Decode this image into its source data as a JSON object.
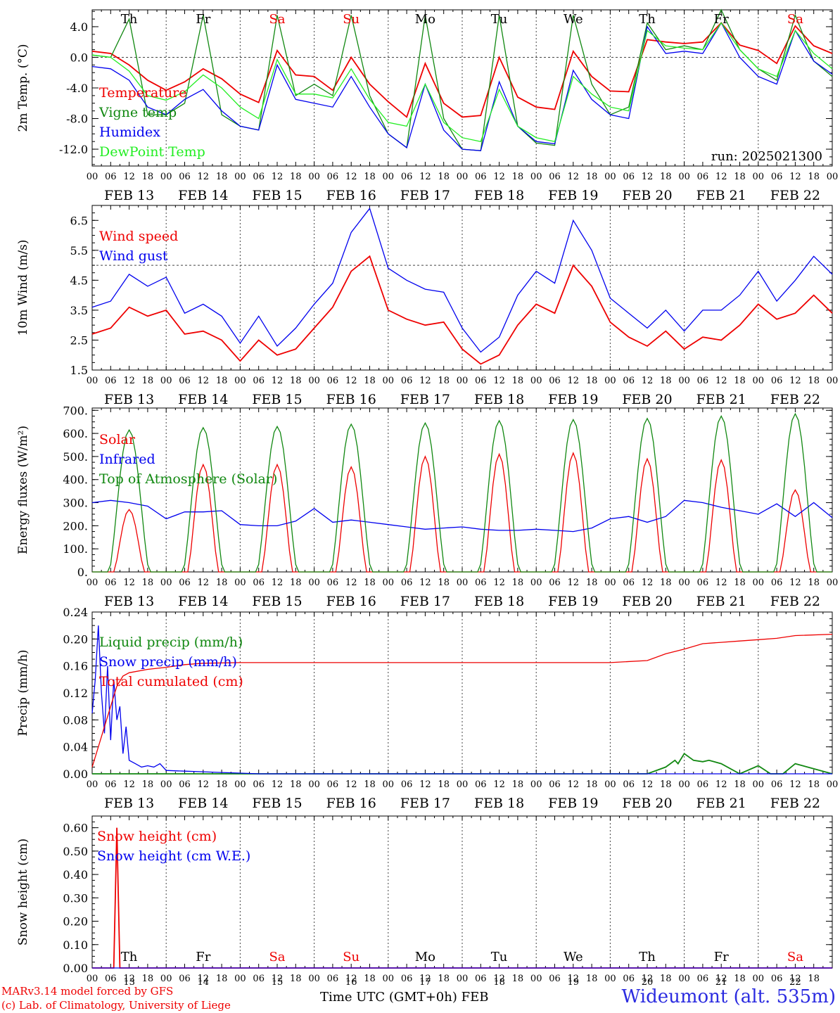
{
  "station": "Wideumont (alt. 535m)",
  "run": "run: 2025021300",
  "footer": {
    "model": "MARv3.14 model forced by GFS",
    "lab": "(c) Lab. of Climatology, University of Liege",
    "axis_title": "Time UTC (GMT+0h) FEB"
  },
  "days": [
    {
      "date": "FEB 13",
      "num": "13",
      "abbr": "Th",
      "weekend": false
    },
    {
      "date": "FEB 14",
      "num": "14",
      "abbr": "Fr",
      "weekend": false
    },
    {
      "date": "FEB 15",
      "num": "15",
      "abbr": "Sa",
      "weekend": true
    },
    {
      "date": "FEB 16",
      "num": "16",
      "abbr": "Su",
      "weekend": true
    },
    {
      "date": "FEB 17",
      "num": "17",
      "abbr": "Mo",
      "weekend": false
    },
    {
      "date": "FEB 18",
      "num": "18",
      "abbr": "Tu",
      "weekend": false
    },
    {
      "date": "FEB 19",
      "num": "19",
      "abbr": "We",
      "weekend": false
    },
    {
      "date": "FEB 20",
      "num": "20",
      "abbr": "Th",
      "weekend": false
    },
    {
      "date": "FEB 21",
      "num": "21",
      "abbr": "Fr",
      "weekend": false
    },
    {
      "date": "FEB 22",
      "num": "22",
      "abbr": "Sa",
      "weekend": true
    }
  ],
  "hour_ticks": [
    "00",
    "06",
    "12",
    "18"
  ],
  "colors": {
    "red": "#ee0000",
    "dark_green": "#118811",
    "blue": "#0000ee",
    "light_green": "#22ee22",
    "weekend": "#ee0000",
    "axis": "#000000"
  },
  "chart_data": [
    {
      "id": "temp",
      "type": "line",
      "ylabel": "2m Temp. (°C)",
      "ylim": [
        -14.2,
        6.2
      ],
      "yticks": [
        "4.0",
        "0.0",
        "-4.0",
        "-8.0",
        "-12.0"
      ],
      "ytick_values": [
        4,
        0,
        -4,
        -8,
        -12
      ],
      "minor_step": 1,
      "ref_line": 0,
      "x_unit": "hours since FEB 13 00 UTC",
      "xlim": [
        0,
        240
      ],
      "series": [
        {
          "name": "Temperature",
          "color": "#ee0000",
          "x": [
            0,
            6,
            12,
            18,
            24,
            30,
            36,
            42,
            48,
            54,
            60,
            66,
            72,
            78,
            84,
            90,
            96,
            102,
            108,
            114,
            120,
            126,
            132,
            138,
            144,
            150,
            156,
            162,
            168,
            174,
            180,
            186,
            192,
            198,
            204,
            210,
            216,
            222,
            228,
            234,
            240
          ],
          "values": [
            0.8,
            0.5,
            -1.0,
            -3.0,
            -4.3,
            -3.2,
            -1.5,
            -2.8,
            -4.8,
            -5.9,
            0.9,
            -2.3,
            -2.5,
            -4.3,
            0.0,
            -3.5,
            -5.8,
            -7.8,
            -0.8,
            -6.0,
            -7.8,
            -7.6,
            0.0,
            -5.2,
            -6.5,
            -6.8,
            0.8,
            -2.5,
            -4.4,
            -4.5,
            2.3,
            2.0,
            1.8,
            2.0,
            4.5,
            1.6,
            0.9,
            -0.8,
            4.1,
            1.5,
            0.5
          ]
        },
        {
          "name": "Vigne temp",
          "color": "#118811",
          "x": [
            0,
            6,
            12,
            18,
            24,
            30,
            36,
            42,
            48,
            54,
            60,
            66,
            72,
            78,
            84,
            90,
            96,
            102,
            108,
            114,
            120,
            126,
            132,
            138,
            144,
            150,
            156,
            162,
            168,
            174,
            180,
            186,
            192,
            198,
            204,
            210,
            216,
            222,
            228,
            234,
            240
          ],
          "values": [
            0.3,
            0.0,
            5.0,
            -7.5,
            -7.5,
            -6.0,
            5.5,
            -7.5,
            -9.0,
            -9.5,
            5.5,
            -5.0,
            -3.5,
            -5.0,
            5.5,
            -5.0,
            -10.0,
            -11.8,
            5.5,
            -8.0,
            -12.0,
            -12.2,
            5.5,
            -9.0,
            -11.2,
            -11.5,
            5.5,
            -3.5,
            -7.5,
            -6.5,
            4.5,
            1.0,
            1.5,
            1.0,
            6.5,
            1.0,
            -1.5,
            -3.0,
            5.5,
            -0.5,
            -2.5
          ]
        },
        {
          "name": "Humidex",
          "color": "#0000ee",
          "x": [
            0,
            6,
            12,
            18,
            24,
            30,
            36,
            42,
            48,
            54,
            60,
            66,
            72,
            78,
            84,
            90,
            96,
            102,
            108,
            114,
            120,
            126,
            132,
            138,
            144,
            150,
            156,
            162,
            168,
            174,
            180,
            186,
            192,
            198,
            204,
            210,
            216,
            222,
            228,
            234,
            240
          ],
          "values": [
            -1.2,
            -1.5,
            -3.0,
            -6.5,
            -7.5,
            -5.5,
            -4.2,
            -7.0,
            -9.0,
            -9.5,
            -1.0,
            -5.5,
            -6.0,
            -6.5,
            -2.5,
            -6.5,
            -10.0,
            -11.8,
            -3.5,
            -9.5,
            -12.0,
            -12.2,
            -3.2,
            -9.0,
            -11.0,
            -11.3,
            -1.7,
            -5.5,
            -7.5,
            -8.0,
            4.0,
            0.5,
            0.8,
            0.5,
            4.5,
            0.0,
            -2.5,
            -3.5,
            3.5,
            -0.5,
            -2.2
          ]
        },
        {
          "name": "DewPoint Temp",
          "color": "#22ee22",
          "x": [
            0,
            6,
            12,
            18,
            24,
            30,
            36,
            42,
            48,
            54,
            60,
            66,
            72,
            78,
            84,
            90,
            96,
            102,
            108,
            114,
            120,
            126,
            132,
            138,
            144,
            150,
            156,
            162,
            168,
            174,
            180,
            186,
            192,
            198,
            204,
            210,
            216,
            222,
            228,
            234,
            240
          ],
          "values": [
            0.3,
            0.0,
            -1.8,
            -5.0,
            -5.6,
            -4.5,
            -2.3,
            -4.0,
            -6.5,
            -8.0,
            -0.3,
            -4.8,
            -4.8,
            -5.3,
            -1.5,
            -5.5,
            -8.5,
            -9.0,
            -3.5,
            -8.5,
            -10.5,
            -11.0,
            -4.2,
            -9.0,
            -10.5,
            -11.0,
            -2.5,
            -4.8,
            -6.5,
            -7.0,
            3.5,
            1.5,
            1.2,
            1.0,
            4.5,
            1.0,
            -1.5,
            -2.5,
            3.5,
            0.5,
            -1.5
          ]
        }
      ],
      "legend": [
        "Temperature",
        "Vigne temp",
        "Humidex",
        "DewPoint Temp"
      ]
    },
    {
      "id": "wind",
      "type": "line",
      "ylabel": "10m Wind (m/s)",
      "ylim": [
        1.5,
        7.0
      ],
      "yticks": [
        "6.5",
        "5.5",
        "4.5",
        "3.5",
        "2.5",
        "1.5"
      ],
      "ytick_values": [
        6.5,
        5.5,
        4.5,
        3.5,
        2.5,
        1.5
      ],
      "minor_step": 0.25,
      "ref_line": 5.0,
      "x_unit": "hours since FEB 13 00 UTC",
      "xlim": [
        0,
        240
      ],
      "series": [
        {
          "name": "Wind speed",
          "color": "#ee0000",
          "x": [
            0,
            6,
            12,
            18,
            24,
            30,
            36,
            42,
            48,
            54,
            60,
            66,
            72,
            78,
            84,
            90,
            96,
            102,
            108,
            114,
            120,
            126,
            132,
            138,
            144,
            150,
            156,
            162,
            168,
            174,
            180,
            186,
            192,
            198,
            204,
            210,
            216,
            222,
            228,
            234,
            240
          ],
          "values": [
            2.7,
            2.9,
            3.6,
            3.3,
            3.5,
            2.7,
            2.8,
            2.5,
            1.8,
            2.5,
            2.0,
            2.2,
            2.9,
            3.6,
            4.8,
            5.3,
            3.5,
            3.2,
            3.0,
            3.1,
            2.2,
            1.7,
            2.0,
            3.0,
            3.7,
            3.4,
            5.0,
            4.3,
            3.1,
            2.6,
            2.3,
            2.8,
            2.2,
            2.6,
            2.5,
            3.0,
            3.7,
            3.2,
            3.4,
            4.0,
            3.4
          ]
        },
        {
          "name": "Wind gust",
          "color": "#0000ee",
          "x": [
            0,
            6,
            12,
            18,
            24,
            30,
            36,
            42,
            48,
            54,
            60,
            66,
            72,
            78,
            84,
            90,
            96,
            102,
            108,
            114,
            120,
            126,
            132,
            138,
            144,
            150,
            156,
            162,
            168,
            174,
            180,
            186,
            192,
            198,
            204,
            210,
            216,
            222,
            228,
            234,
            240
          ],
          "values": [
            3.6,
            3.8,
            4.7,
            4.3,
            4.6,
            3.4,
            3.7,
            3.3,
            2.4,
            3.3,
            2.3,
            2.9,
            3.7,
            4.4,
            6.1,
            6.9,
            4.9,
            4.5,
            4.2,
            4.1,
            2.9,
            2.1,
            2.6,
            4.0,
            4.8,
            4.4,
            6.5,
            5.5,
            3.9,
            3.4,
            2.9,
            3.5,
            2.8,
            3.5,
            3.5,
            4.0,
            4.8,
            3.8,
            4.5,
            5.3,
            4.7
          ]
        }
      ],
      "legend": [
        "Wind speed",
        "Wind gust"
      ]
    },
    {
      "id": "flux",
      "type": "line",
      "ylabel": "Energy fluxes (W/m²)",
      "ylim": [
        0,
        710
      ],
      "yticks": [
        "700.",
        "600.",
        "500.",
        "400.",
        "300.",
        "200.",
        "100.",
        "0."
      ],
      "ytick_values": [
        700,
        600,
        500,
        400,
        300,
        200,
        100,
        0
      ],
      "minor_step": 25,
      "ref_line": null,
      "x_unit": "hours since FEB 13 00 UTC",
      "xlim": [
        0,
        240
      ],
      "series": [
        {
          "name": "Solar",
          "color": "#ee0000",
          "peaks": [
            270,
            465,
            465,
            455,
            500,
            510,
            515,
            490,
            485,
            355
          ]
        },
        {
          "name": "Infrared",
          "color": "#0000ee",
          "x": [
            0,
            6,
            12,
            18,
            24,
            30,
            36,
            42,
            48,
            54,
            60,
            66,
            72,
            78,
            84,
            90,
            96,
            102,
            108,
            114,
            120,
            126,
            132,
            138,
            144,
            150,
            156,
            162,
            168,
            174,
            180,
            186,
            192,
            198,
            204,
            210,
            216,
            222,
            228,
            234,
            240
          ],
          "values": [
            300,
            310,
            300,
            285,
            230,
            260,
            260,
            265,
            205,
            200,
            200,
            220,
            275,
            215,
            225,
            215,
            205,
            195,
            185,
            190,
            195,
            185,
            180,
            180,
            185,
            180,
            175,
            190,
            230,
            240,
            215,
            240,
            310,
            300,
            280,
            265,
            250,
            295,
            240,
            300,
            235
          ]
        },
        {
          "name": "Top of Atmosphere (Solar)",
          "color": "#118811",
          "peaks": [
            615,
            625,
            630,
            640,
            645,
            655,
            660,
            665,
            675,
            685
          ]
        }
      ],
      "legend": [
        "Solar",
        "Infrared",
        "Top of Atmosphere (Solar)"
      ]
    },
    {
      "id": "precip",
      "type": "line",
      "ylabel": "Precip (mm/h)",
      "ylim": [
        0,
        0.24
      ],
      "yticks": [
        "0.24",
        "0.20",
        "0.16",
        "0.12",
        "0.08",
        "0.04",
        "0.00"
      ],
      "ytick_values": [
        0.24,
        0.2,
        0.16,
        0.12,
        0.08,
        0.04,
        0.0
      ],
      "minor_step": 0.01,
      "ref_line": null,
      "x_unit": "hours since FEB 13 00 UTC",
      "xlim": [
        0,
        240
      ],
      "series": [
        {
          "name": "Liquid precip (mm/h)",
          "color": "#118811",
          "x": [
            0,
            180,
            186,
            189,
            190,
            192,
            195,
            198,
            200,
            204,
            210,
            216,
            220,
            222,
            224,
            228,
            240
          ],
          "values": [
            0,
            0,
            0.01,
            0.02,
            0.015,
            0.03,
            0.02,
            0.018,
            0.02,
            0.015,
            0,
            0.012,
            0,
            0,
            0,
            0.015,
            0
          ]
        },
        {
          "name": "Snow precip (mm/h)",
          "color": "#0000ee",
          "x": [
            0,
            1,
            2,
            3,
            4,
            5,
            6,
            7,
            8,
            9,
            10,
            11,
            12,
            14,
            16,
            18,
            20,
            22,
            24,
            30,
            36,
            42,
            48,
            54,
            240
          ],
          "values": [
            0.09,
            0.14,
            0.22,
            0.12,
            0.06,
            0.16,
            0.05,
            0.14,
            0.08,
            0.1,
            0.03,
            0.07,
            0.02,
            0.015,
            0.01,
            0.012,
            0.01,
            0.015,
            0.005,
            0.004,
            0.003,
            0.002,
            0.001,
            0.0,
            0.0
          ]
        },
        {
          "name": "Total cumulated (cm)",
          "color": "#ee0000",
          "x": [
            0,
            2,
            4,
            6,
            8,
            10,
            12,
            18,
            24,
            30,
            36,
            48,
            72,
            96,
            120,
            144,
            168,
            180,
            186,
            192,
            198,
            204,
            210,
            216,
            222,
            228,
            240
          ],
          "values": [
            0.01,
            0.04,
            0.07,
            0.1,
            0.13,
            0.145,
            0.15,
            0.155,
            0.158,
            0.162,
            0.164,
            0.165,
            0.165,
            0.165,
            0.165,
            0.165,
            0.165,
            0.168,
            0.178,
            0.185,
            0.193,
            0.195,
            0.197,
            0.199,
            0.201,
            0.205,
            0.207
          ]
        }
      ],
      "legend": [
        "Liquid precip (mm/h)",
        "Snow precip (mm/h)",
        "Total cumulated (cm)"
      ]
    },
    {
      "id": "snow",
      "type": "line",
      "ylabel": "Snow height (cm)",
      "ylim": [
        0,
        0.65
      ],
      "yticks": [
        "0.60",
        "0.50",
        "0.40",
        "0.30",
        "0.20",
        "0.10",
        "0.00"
      ],
      "ytick_values": [
        0.6,
        0.5,
        0.4,
        0.3,
        0.2,
        0.1,
        0.0
      ],
      "minor_step": 0.025,
      "ref_line": null,
      "x_unit": "hours since FEB 13 00 UTC",
      "xlim": [
        0,
        240
      ],
      "series": [
        {
          "name": "Snow height (cm)",
          "color": "#ee0000",
          "x": [
            0,
            7,
            8,
            9,
            240
          ],
          "values": [
            0,
            0,
            0.6,
            0,
            0
          ]
        },
        {
          "name": "Snow height (cm W.E.)",
          "color": "#0000ee",
          "x": [
            0,
            240
          ],
          "values": [
            0,
            0
          ]
        }
      ],
      "legend": [
        "Snow height (cm)",
        "Snow height (cm W.E.)"
      ]
    }
  ]
}
